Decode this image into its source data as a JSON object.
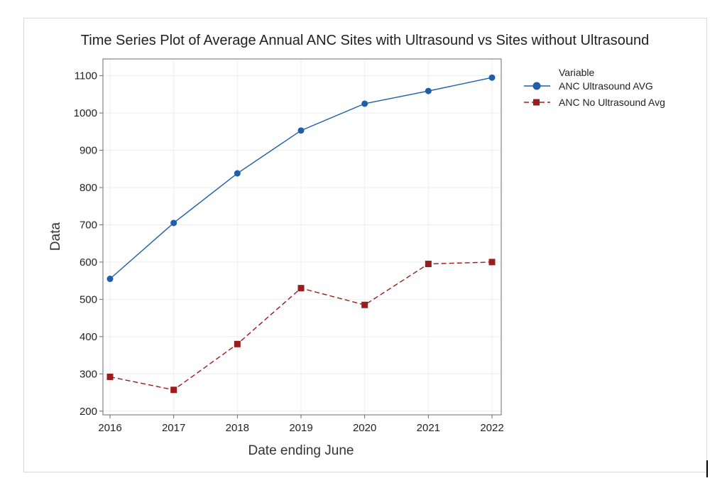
{
  "chart_data": {
    "type": "line",
    "title": "Time Series Plot of Average Annual ANC Sites with Ultrasound vs Sites without Ultrasound",
    "xlabel": "Date ending June",
    "ylabel": "Data",
    "x": [
      "2016",
      "2017",
      "2018",
      "2019",
      "2020",
      "2021",
      "2022"
    ],
    "ylim": [
      190,
      1145
    ],
    "yticks": [
      200,
      300,
      400,
      500,
      600,
      700,
      800,
      900,
      1000,
      1100
    ],
    "grid": true,
    "legend": {
      "title": "Variable",
      "placement": "top-right, outside plot"
    },
    "series": [
      {
        "name": "ANC Ultrasound AVG",
        "values": [
          555,
          705,
          838,
          953,
          1025,
          1059,
          1095
        ],
        "color": "#1f5fa8",
        "line_style": "solid",
        "marker": "circle"
      },
      {
        "name": "ANC No Ultrasound Avg",
        "values": [
          292,
          257,
          380,
          530,
          485,
          595,
          600
        ],
        "color": "#9b1c1c",
        "line_style": "dashed",
        "marker": "square"
      }
    ]
  }
}
